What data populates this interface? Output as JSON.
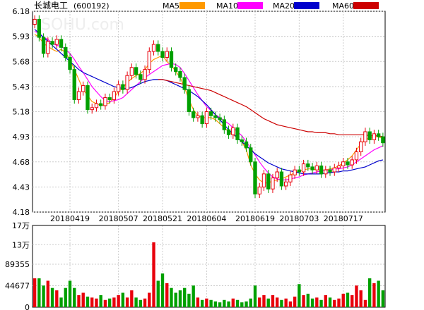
{
  "header": {
    "title": "长城电工",
    "code": "(600192)",
    "watermark": "SOHU.com"
  },
  "legend": [
    {
      "name": "MA5",
      "color": "#FF9900"
    },
    {
      "name": "MA10",
      "color": "#FF00FF"
    },
    {
      "name": "MA20",
      "color": "#0000CC"
    },
    {
      "name": "MA60",
      "color": "#CC0000"
    }
  ],
  "colors": {
    "up": "#E8000B",
    "down": "#00A000",
    "grid": "#cccccc",
    "axis": "#000000"
  },
  "chart_data": [
    {
      "type": "candlestick",
      "title": "长城电工(600192)",
      "price_ticks": [
        "6.18",
        "5.93",
        "5.68",
        "5.43",
        "5.18",
        "4.93",
        "4.68",
        "4.43",
        "4.18"
      ],
      "ylim": [
        4.18,
        6.18
      ],
      "date_labels": [
        {
          "i": 8,
          "label": "20180419"
        },
        {
          "i": 19,
          "label": "20180507"
        },
        {
          "i": 29,
          "label": "20180521"
        },
        {
          "i": 39,
          "label": "20180604"
        },
        {
          "i": 50,
          "label": "20180619"
        },
        {
          "i": 60,
          "label": "20180703"
        },
        {
          "i": 70,
          "label": "20180717"
        }
      ],
      "closes": [
        6.1,
        5.92,
        5.76,
        5.88,
        5.85,
        5.9,
        5.82,
        5.72,
        5.6,
        5.3,
        5.38,
        5.44,
        5.2,
        5.22,
        5.26,
        5.24,
        5.32,
        5.3,
        5.38,
        5.45,
        5.4,
        5.54,
        5.62,
        5.55,
        5.5,
        5.6,
        5.78,
        5.85,
        5.78,
        5.72,
        5.78,
        5.62,
        5.58,
        5.52,
        5.4,
        5.18,
        5.12,
        5.14,
        5.06,
        5.18,
        5.14,
        5.12,
        5.1,
        5.0,
        4.95,
        5.02,
        4.9,
        4.88,
        4.82,
        4.68,
        4.36,
        4.43,
        4.56,
        4.41,
        4.52,
        4.58,
        4.44,
        4.48,
        4.55,
        4.6,
        4.58,
        4.66,
        4.63,
        4.6,
        4.64,
        4.56,
        4.6,
        4.58,
        4.62,
        4.64,
        4.68,
        4.65,
        4.7,
        4.78,
        4.88,
        4.98,
        4.9,
        4.96,
        4.93,
        4.87
      ],
      "ma5": [
        5.95,
        5.92,
        5.86,
        5.83,
        5.8,
        5.78,
        5.8,
        5.77,
        5.7,
        5.6,
        5.5,
        5.4,
        5.34,
        5.28,
        5.26,
        5.24,
        5.25,
        5.27,
        5.32,
        5.38,
        5.42,
        5.47,
        5.51,
        5.54,
        5.56,
        5.6,
        5.66,
        5.7,
        5.72,
        5.74,
        5.68,
        5.64,
        5.58,
        5.52,
        5.42,
        5.3,
        5.2,
        5.14,
        5.12,
        5.12,
        5.12,
        5.1,
        5.06,
        5.02,
        4.98,
        4.95,
        4.92,
        4.88,
        4.8,
        4.65,
        4.56,
        4.5,
        4.47,
        4.47,
        4.49,
        4.5,
        4.51,
        4.53,
        4.55,
        4.57,
        4.59,
        4.6,
        4.61,
        4.61,
        4.6,
        4.6,
        4.6,
        4.61,
        4.62,
        4.64,
        4.67,
        4.7,
        4.74,
        4.8,
        4.86,
        4.9,
        4.92,
        4.93,
        4.93,
        4.91
      ],
      "ma10": [
        5.98,
        5.96,
        5.92,
        5.9,
        5.86,
        5.84,
        5.83,
        5.8,
        5.76,
        5.7,
        5.63,
        5.57,
        5.5,
        5.43,
        5.38,
        5.33,
        5.29,
        5.28,
        5.29,
        5.3,
        5.32,
        5.36,
        5.4,
        5.44,
        5.48,
        5.52,
        5.55,
        5.58,
        5.61,
        5.64,
        5.65,
        5.66,
        5.65,
        5.62,
        5.56,
        5.49,
        5.42,
        5.35,
        5.29,
        5.23,
        5.19,
        5.15,
        5.12,
        5.09,
        5.06,
        5.02,
        4.98,
        4.94,
        4.88,
        4.82,
        4.75,
        4.68,
        4.62,
        4.57,
        4.53,
        4.51,
        4.5,
        4.5,
        4.51,
        4.52,
        4.53,
        4.55,
        4.56,
        4.57,
        4.58,
        4.59,
        4.6,
        4.6,
        4.61,
        4.61,
        4.62,
        4.63,
        4.65,
        4.68,
        4.71,
        4.74,
        4.77,
        4.8,
        4.82,
        4.84
      ],
      "ma20": [
        6.0,
        5.96,
        5.92,
        5.88,
        5.84,
        5.8,
        5.76,
        5.72,
        5.68,
        5.64,
        5.6,
        5.57,
        5.55,
        5.53,
        5.51,
        5.49,
        5.47,
        5.45,
        5.43,
        5.42,
        5.41,
        5.41,
        5.42,
        5.44,
        5.46,
        5.48,
        5.49,
        5.5,
        5.5,
        5.5,
        5.49,
        5.47,
        5.45,
        5.43,
        5.41,
        5.39,
        5.36,
        5.33,
        5.29,
        5.25,
        5.2,
        5.15,
        5.1,
        5.05,
        5.0,
        4.96,
        4.92,
        4.88,
        4.84,
        4.8,
        4.76,
        4.73,
        4.7,
        4.67,
        4.65,
        4.63,
        4.61,
        4.6,
        4.59,
        4.58,
        4.57,
        4.56,
        4.56,
        4.56,
        4.56,
        4.56,
        4.57,
        4.57,
        4.58,
        4.58,
        4.59,
        4.59,
        4.6,
        4.61,
        4.62,
        4.63,
        4.65,
        4.67,
        4.69,
        4.7
      ],
      "ma60": [
        null,
        null,
        null,
        null,
        null,
        null,
        null,
        null,
        null,
        null,
        null,
        null,
        null,
        null,
        null,
        null,
        null,
        null,
        null,
        null,
        null,
        null,
        null,
        null,
        null,
        null,
        null,
        null,
        5.5,
        5.5,
        5.49,
        5.48,
        5.47,
        5.46,
        5.45,
        5.44,
        5.43,
        5.42,
        5.41,
        5.4,
        5.39,
        5.37,
        5.35,
        5.33,
        5.31,
        5.29,
        5.27,
        5.25,
        5.23,
        5.2,
        5.17,
        5.14,
        5.11,
        5.09,
        5.07,
        5.05,
        5.04,
        5.03,
        5.02,
        5.01,
        5.0,
        4.99,
        4.98,
        4.98,
        4.97,
        4.97,
        4.97,
        4.96,
        4.96,
        4.95,
        4.95,
        4.95,
        4.95,
        4.95,
        4.95,
        4.95,
        4.94,
        4.94,
        4.94,
        4.93
      ]
    },
    {
      "type": "bar",
      "title": "",
      "vol_ticks": [
        "17万",
        "13万",
        "89355",
        "44677",
        "0"
      ],
      "ylim": [
        0,
        170000
      ],
      "volumes": [
        60000,
        60000,
        45000,
        55000,
        40000,
        35000,
        20000,
        40000,
        55000,
        40000,
        25000,
        30000,
        22000,
        20000,
        18000,
        25000,
        15000,
        18000,
        20000,
        25000,
        30000,
        20000,
        35000,
        20000,
        15000,
        18000,
        30000,
        135000,
        55000,
        70000,
        50000,
        40000,
        30000,
        35000,
        40000,
        28000,
        45000,
        20000,
        15000,
        18000,
        15000,
        12000,
        10000,
        15000,
        12000,
        18000,
        15000,
        10000,
        12000,
        18000,
        45000,
        20000,
        25000,
        18000,
        25000,
        20000,
        15000,
        18000,
        12000,
        22000,
        48000,
        25000,
        28000,
        18000,
        20000,
        15000,
        25000,
        20000,
        15000,
        18000,
        28000,
        30000,
        25000,
        45000,
        35000,
        15000,
        60000,
        50000,
        55000,
        35000
      ]
    }
  ]
}
